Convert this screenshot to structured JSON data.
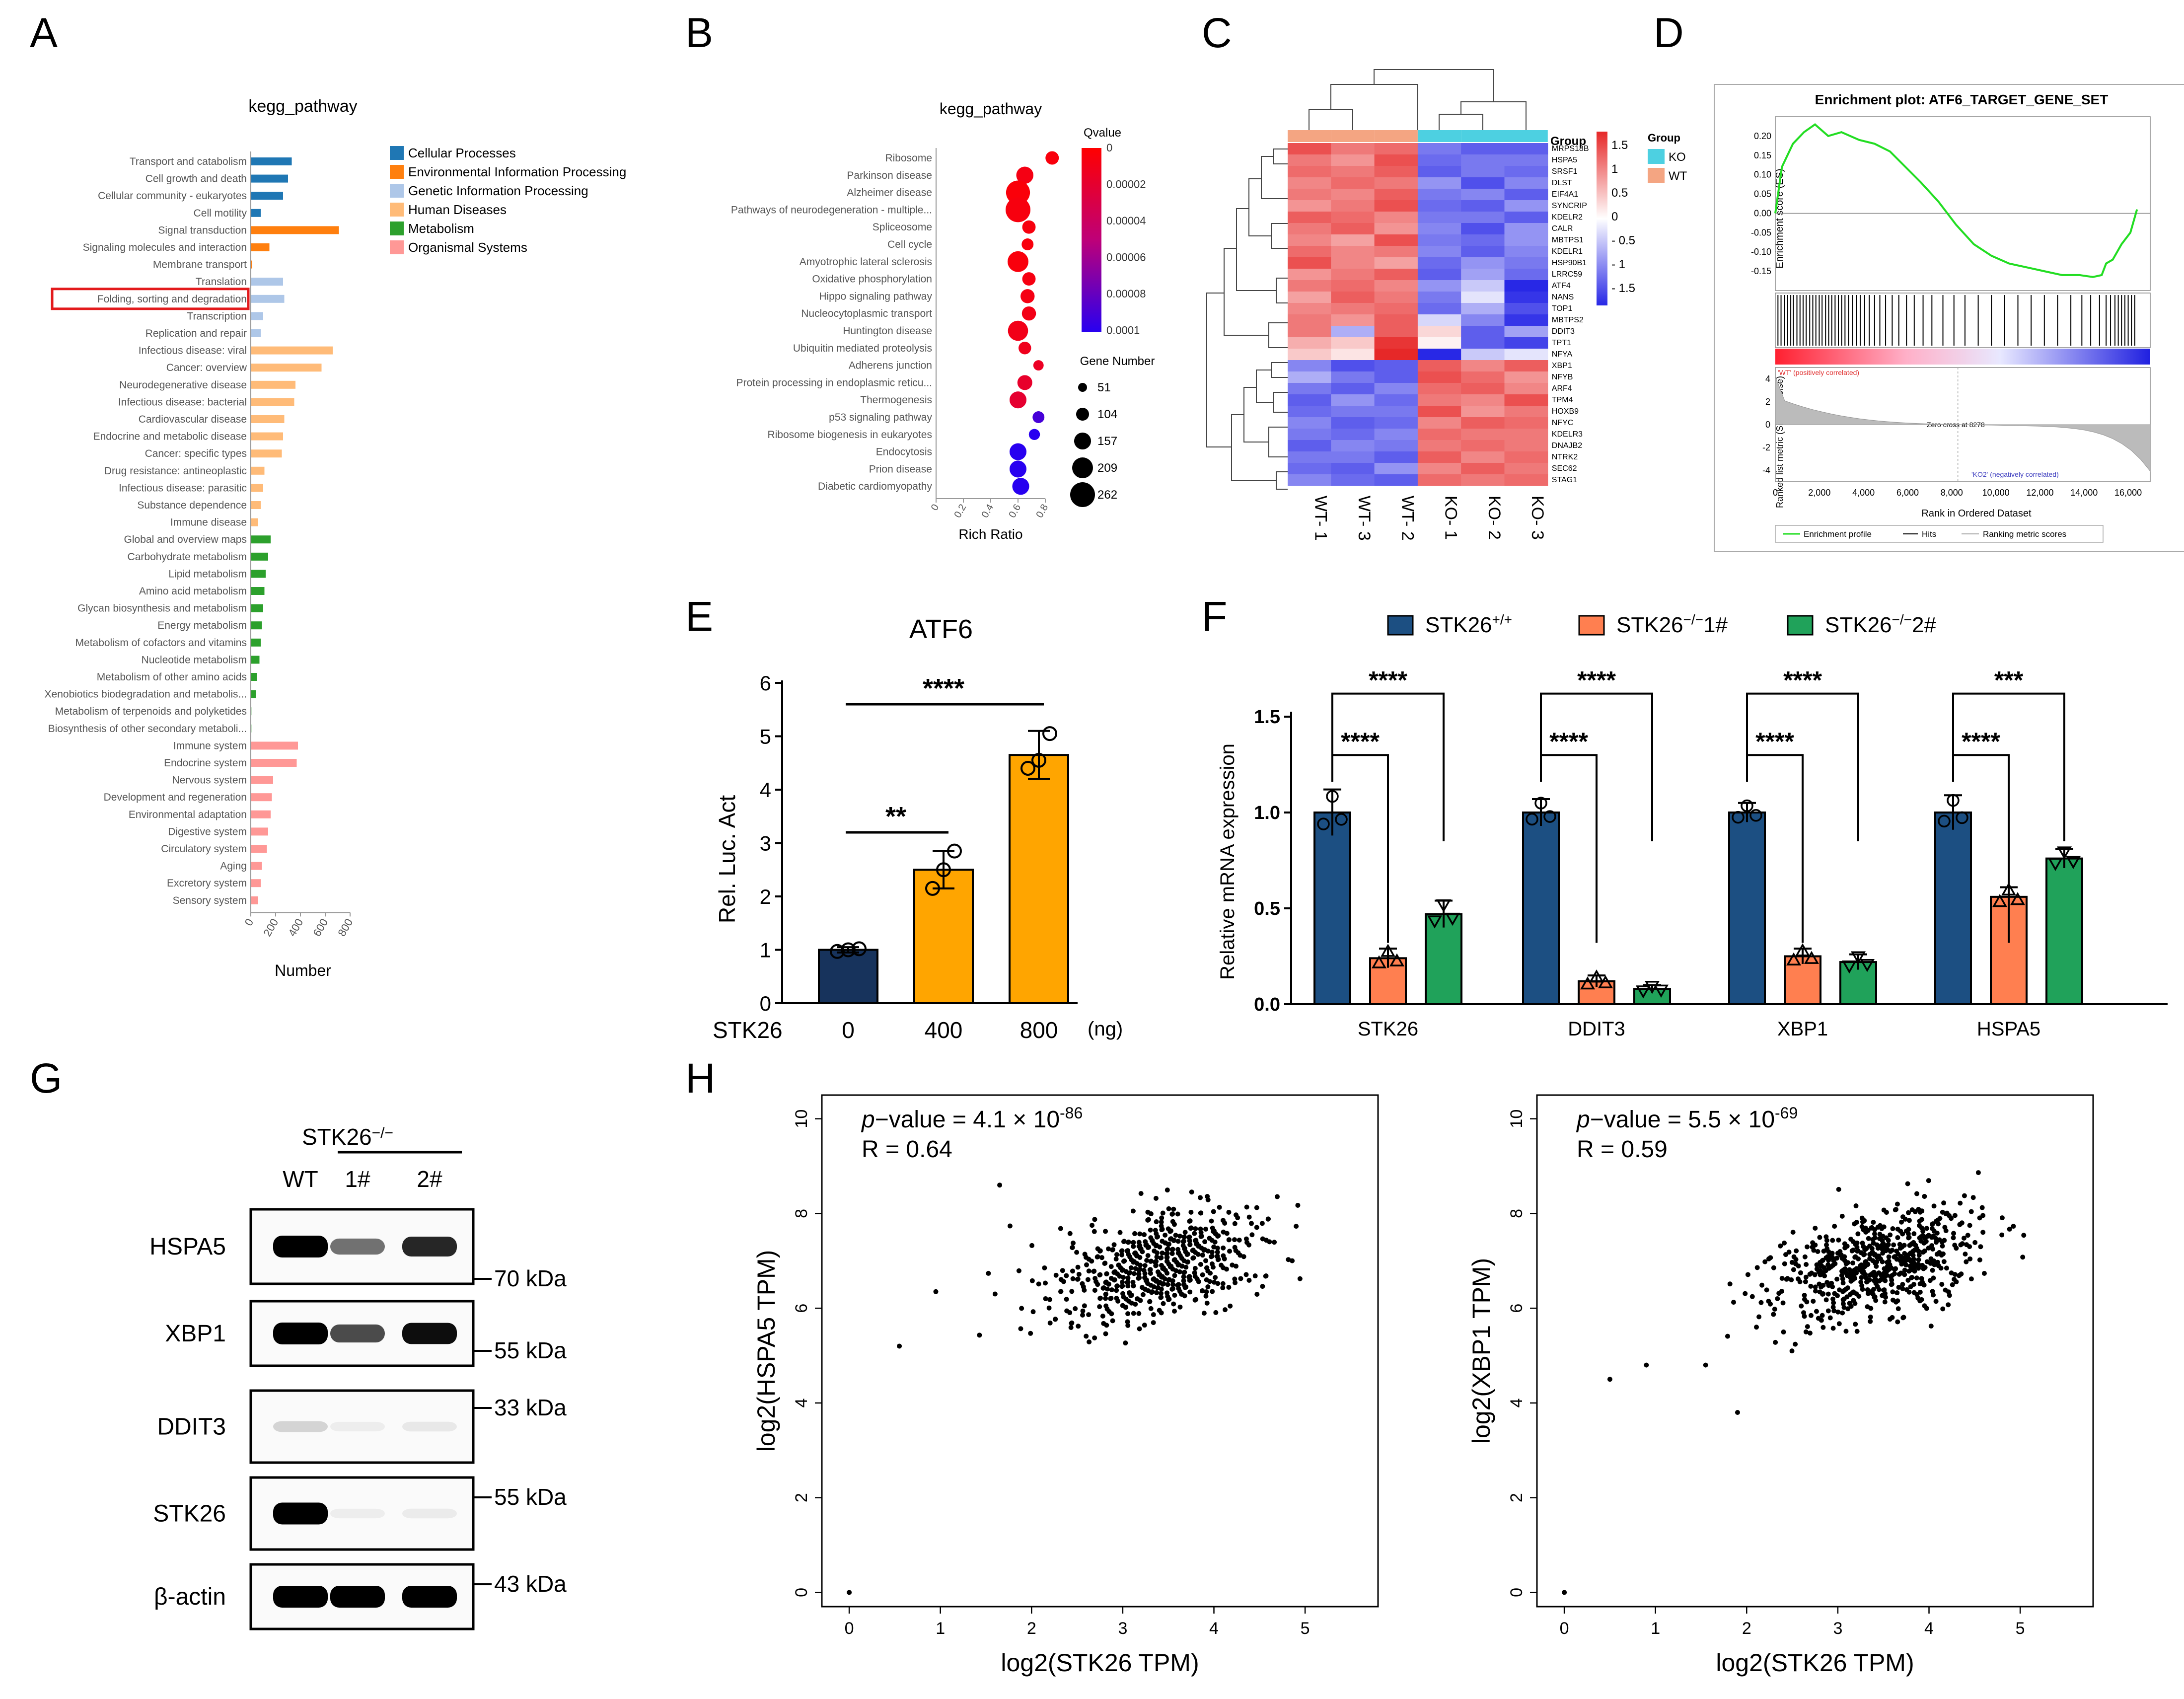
{
  "colors": {
    "cellular": "#1f77b4",
    "environmental": "#ff7f0e",
    "genetic": "#aec7e8",
    "human": "#ffbb78",
    "metabolism": "#2ca02c",
    "organismal": "#ff9896",
    "wt_group": "#f4a582",
    "ko_group": "#4dd0e1",
    "e_dark": "#17335c",
    "e_orange": "#ffa500",
    "f_blue": "#1c4f82",
    "f_orange": "#ff7f50",
    "f_green": "#20a25a",
    "highlight": "#e31a1c",
    "gsea_green": "#22dd22"
  },
  "panel_letters": {
    "a": "A",
    "b": "B",
    "c": "C",
    "d": "D",
    "e": "E",
    "f": "F",
    "g": "G",
    "h": "H"
  },
  "chart_data": [
    {
      "id": "A",
      "type": "bar",
      "title": "kegg_pathway",
      "xlabel": "Number",
      "xlim": [
        0,
        800
      ],
      "xticks": [
        "0",
        "200",
        "400",
        "600",
        "800"
      ],
      "highlighted": "Folding, sorting and degradation",
      "legend": [
        {
          "label": "Cellular Processes",
          "cat": "cellular"
        },
        {
          "label": "Environmental Information Processing",
          "cat": "environmental"
        },
        {
          "label": "Genetic Information Processing",
          "cat": "genetic"
        },
        {
          "label": "Human Diseases",
          "cat": "human"
        },
        {
          "label": "Metabolism",
          "cat": "metabolism"
        },
        {
          "label": "Organismal Systems",
          "cat": "organismal"
        }
      ],
      "categories": [
        "Transport and catabolism",
        "Cell growth and death",
        "Cellular community - eukaryotes",
        "Cell motility",
        "Signal transduction",
        "Signaling molecules and interaction",
        "Membrane transport",
        "Translation",
        "Folding, sorting and degradation",
        "Transcription",
        "Replication and repair",
        "Infectious disease: viral",
        "Cancer: overview",
        "Neurodegenerative disease",
        "Infectious disease: bacterial",
        "Cardiovascular disease",
        "Endocrine and metabolic disease",
        "Cancer: specific types",
        "Drug resistance: antineoplastic",
        "Infectious disease: parasitic",
        "Substance dependence",
        "Immune disease",
        "Global and overview maps",
        "Carbohydrate metabolism",
        "Lipid metabolism",
        "Amino acid metabolism",
        "Glycan biosynthesis and metabolism",
        "Energy metabolism",
        "Metabolism of cofactors and vitamins",
        "Nucleotide metabolism",
        "Metabolism of other amino acids",
        "Xenobiotics biodegradation and metabolis...",
        "Metabolism of terpenoids and polyketides",
        "Biosynthesis of other secondary metaboli...",
        "Immune system",
        "Endocrine system",
        "Nervous system",
        "Development and regeneration",
        "Environmental adaptation",
        "Digestive system",
        "Circulatory system",
        "Aging",
        "Excretory system",
        "Sensory system"
      ],
      "groups": [
        "cellular",
        "cellular",
        "cellular",
        "cellular",
        "environmental",
        "environmental",
        "environmental",
        "genetic",
        "genetic",
        "genetic",
        "genetic",
        "human",
        "human",
        "human",
        "human",
        "human",
        "human",
        "human",
        "human",
        "human",
        "human",
        "human",
        "metabolism",
        "metabolism",
        "metabolism",
        "metabolism",
        "metabolism",
        "metabolism",
        "metabolism",
        "metabolism",
        "metabolism",
        "metabolism",
        "metabolism",
        "metabolism",
        "organismal",
        "organismal",
        "organismal",
        "organismal",
        "organismal",
        "organismal",
        "organismal",
        "organismal",
        "organismal",
        "organismal"
      ],
      "values": [
        330,
        300,
        260,
        80,
        710,
        150,
        10,
        260,
        270,
        100,
        80,
        660,
        570,
        360,
        350,
        270,
        260,
        250,
        110,
        100,
        80,
        60,
        160,
        140,
        120,
        110,
        100,
        90,
        80,
        70,
        50,
        40,
        5,
        5,
        380,
        370,
        180,
        170,
        160,
        140,
        130,
        90,
        80,
        60
      ]
    },
    {
      "id": "B",
      "type": "scatter",
      "title": "kegg_pathway",
      "xlabel": "Rich Ratio",
      "xlim": [
        0,
        0.8
      ],
      "xticks": [
        "0",
        "0.2",
        "0.4",
        "0.6",
        "0.8"
      ],
      "qvalue_title": "Qvalue",
      "qvalue_ticks": [
        "0",
        "0.00002",
        "0.00004",
        "0.00006",
        "0.00008",
        "0.0001"
      ],
      "size_title": "Gene Number",
      "size_ticks": [
        51,
        104,
        157,
        209,
        262
      ],
      "categories": [
        "Ribosome",
        "Parkinson disease",
        "Alzheimer disease",
        "Pathways of neurodegeneration - multiple...",
        "Spliceosome",
        "Cell cycle",
        "Amyotrophic lateral sclerosis",
        "Oxidative phosphorylation",
        "Hippo signaling pathway",
        "Nucleocytoplasmic transport",
        "Huntington disease",
        "Ubiquitin mediated proteolysis",
        "Adherens junction",
        "Protein processing in endoplasmic reticu...",
        "Thermogenesis",
        "p53 signaling pathway",
        "Ribosome biogenesis in eukaryotes",
        "Endocytosis",
        "Prion disease",
        "Diabetic cardiomyopathy"
      ],
      "rich_ratio": [
        0.85,
        0.65,
        0.6,
        0.6,
        0.68,
        0.67,
        0.6,
        0.68,
        0.67,
        0.68,
        0.6,
        0.65,
        0.75,
        0.65,
        0.6,
        0.75,
        0.72,
        0.6,
        0.6,
        0.62
      ],
      "qvalue": [
        5e-06,
        8e-06,
        4e-06,
        6e-06,
        6e-06,
        5e-06,
        5e-06,
        7e-06,
        8e-06,
        9e-06,
        1e-05,
        1.2e-05,
        1.5e-05,
        1.8e-05,
        2e-05,
        9e-05,
        0.0001,
        0.0001,
        0.0001,
        0.0001
      ],
      "gene_number": [
        110,
        160,
        250,
        262,
        110,
        90,
        209,
        110,
        120,
        120,
        200,
        100,
        70,
        130,
        157,
        90,
        80,
        157,
        157,
        157
      ]
    },
    {
      "id": "C",
      "type": "heatmap",
      "group_label": "Group",
      "legend_title": "Group",
      "legend_entries": [
        "KO",
        "WT"
      ],
      "colorbar_ticks": [
        "1.5",
        "1",
        "0.5",
        "0",
        "- 0.5",
        "- 1",
        "- 1.5"
      ],
      "columns": [
        "WT- 1",
        "WT- 3",
        "WT- 2",
        "KO- 1",
        "KO- 2",
        "KO- 3"
      ],
      "genes": [
        "MRPS18B",
        "HSPA5",
        "SRSF1",
        "DLST",
        "EIF4A1",
        "SYNCRIP",
        "KDELR2",
        "CALR",
        "MBTPS1",
        "KDELR1",
        "HSP90B1",
        "LRRC59",
        "ATF4",
        "NANS",
        "TOP1",
        "MBTPS2",
        "DDIT3",
        "TPT1",
        "NFYA",
        "XBP1",
        "NFYB",
        "ARF4",
        "TPM4",
        "HOXB9",
        "NFYC",
        "KDELR3",
        "DNAJB2",
        "NTRK2",
        "SEC62",
        "STAG1"
      ],
      "values": [
        [
          1.3,
          1.0,
          1.1,
          -1.0,
          -1.2,
          -1.2
        ],
        [
          1.0,
          0.8,
          1.3,
          -1.1,
          -1.0,
          -1.0
        ],
        [
          1.1,
          1.0,
          1.2,
          -1.2,
          -1.0,
          -1.1
        ],
        [
          0.9,
          1.1,
          1.0,
          -0.8,
          -1.3,
          -0.9
        ],
        [
          1.0,
          0.9,
          1.2,
          -1.0,
          -0.9,
          -1.2
        ],
        [
          0.8,
          1.0,
          1.3,
          -1.1,
          -1.2,
          -0.8
        ],
        [
          1.2,
          1.1,
          0.9,
          -1.0,
          -1.0,
          -1.2
        ],
        [
          1.0,
          1.2,
          0.8,
          -0.9,
          -1.3,
          -0.8
        ],
        [
          0.9,
          0.7,
          1.3,
          -1.0,
          -1.1,
          -0.8
        ],
        [
          1.1,
          0.9,
          1.0,
          -0.9,
          -1.2,
          -0.9
        ],
        [
          1.3,
          0.9,
          0.7,
          -1.1,
          -0.8,
          -1.0
        ],
        [
          0.8,
          1.0,
          1.2,
          -1.2,
          -0.7,
          -1.1
        ],
        [
          1.0,
          1.1,
          0.9,
          -0.8,
          -0.4,
          -1.6
        ],
        [
          0.7,
          1.2,
          1.0,
          -1.0,
          -0.2,
          -1.5
        ],
        [
          0.9,
          1.0,
          1.1,
          -1.1,
          -0.6,
          -1.3
        ],
        [
          1.0,
          0.8,
          1.2,
          -0.3,
          -0.9,
          -1.5
        ],
        [
          1.0,
          -0.6,
          1.2,
          0.3,
          -1.2,
          -0.7
        ],
        [
          0.6,
          0.4,
          1.5,
          0.1,
          -1.2,
          -1.4
        ],
        [
          0.4,
          0.2,
          1.6,
          -1.6,
          -0.4,
          -0.2
        ],
        [
          -0.9,
          -1.3,
          -1.2,
          1.2,
          0.9,
          1.2
        ],
        [
          -0.6,
          -1.0,
          -1.2,
          1.3,
          1.1,
          0.8
        ],
        [
          -1.0,
          -1.2,
          -0.9,
          1.1,
          1.2,
          0.9
        ],
        [
          -1.2,
          -0.8,
          -1.1,
          1.0,
          0.9,
          1.3
        ],
        [
          -1.1,
          -1.0,
          -1.0,
          1.3,
          0.8,
          1.0
        ],
        [
          -0.9,
          -1.2,
          -1.1,
          0.9,
          1.2,
          1.1
        ],
        [
          -1.0,
          -1.1,
          -0.9,
          1.1,
          1.0,
          1.0
        ],
        [
          -1.2,
          -0.9,
          -1.0,
          1.0,
          1.1,
          1.0
        ],
        [
          -1.0,
          -1.0,
          -1.2,
          1.2,
          0.9,
          1.1
        ],
        [
          -1.1,
          -1.2,
          -0.8,
          0.9,
          1.2,
          1.0
        ],
        [
          -0.9,
          -1.1,
          -1.2,
          1.1,
          1.0,
          1.1
        ]
      ]
    },
    {
      "id": "D",
      "type": "line",
      "title": "Enrichment plot: ATF6_TARGET_GENE_SET",
      "ylabel": "Enrichment score (ES)",
      "ylabel2": "Ranked list metric (Signal2Noise)",
      "xlabel": "Rank in Ordered Dataset",
      "xlim": [
        0,
        17000
      ],
      "ylim": [
        -0.2,
        0.25
      ],
      "yticks": [
        "0.20",
        "0.15",
        "0.10",
        "0.05",
        "0.00",
        "-0.05",
        "-0.10",
        "-0.15"
      ],
      "xticks": [
        "0",
        "2,000",
        "4,000",
        "6,000",
        "8,000",
        "10,000",
        "12,000",
        "14,000",
        "16,000"
      ],
      "ranked_ticks": [
        "4",
        "2",
        "0",
        "-2",
        "-4"
      ],
      "es_x": [
        0,
        300,
        800,
        1300,
        1800,
        2400,
        3000,
        3800,
        4500,
        5200,
        5900,
        6600,
        7400,
        8200,
        9000,
        9800,
        10600,
        11400,
        12200,
        13000,
        13800,
        14400,
        14800,
        15000,
        15300,
        15700,
        16100,
        16400
      ],
      "es_y": [
        0.0,
        0.12,
        0.18,
        0.21,
        0.23,
        0.2,
        0.21,
        0.19,
        0.18,
        0.16,
        0.12,
        0.08,
        0.03,
        -0.03,
        -0.08,
        -0.11,
        -0.13,
        -0.14,
        -0.15,
        -0.16,
        -0.16,
        -0.165,
        -0.16,
        -0.13,
        -0.12,
        -0.08,
        -0.05,
        0.01
      ],
      "hits": [
        120,
        260,
        420,
        560,
        700,
        820,
        980,
        1120,
        1260,
        1400,
        1560,
        1700,
        1840,
        1990,
        2120,
        2280,
        2420,
        2560,
        2710,
        2860,
        3010,
        3160,
        3320,
        3500,
        3680,
        3850,
        4050,
        4260,
        4500,
        4740,
        5000,
        5300,
        5600,
        5950,
        6300,
        6700,
        7100,
        7600,
        8100,
        8600,
        9200,
        9800,
        10400,
        11000,
        11600,
        12200,
        12800,
        13400,
        13900,
        14300,
        14700,
        15000,
        15200,
        15400,
        15550,
        15700,
        15850,
        16000,
        16150,
        16300
      ],
      "wt_label": "'WT' (positively correlated)",
      "ko_label": "'KO2' (negatively correlated)",
      "zero_cross": "Zero cross at 8278",
      "legend": [
        "Enrichment profile",
        "Hits",
        "Ranking metric scores"
      ]
    },
    {
      "id": "E",
      "type": "bar",
      "title": "ATF6",
      "ylabel": "Rel. Luc. Act",
      "xlabel_prefix": "STK26",
      "unit": "(ng)",
      "categories": [
        "0",
        "400",
        "800"
      ],
      "values": [
        1.0,
        2.5,
        4.65
      ],
      "errors": [
        0.05,
        0.35,
        0.45
      ],
      "points": [
        [
          0.97,
          1.0,
          1.02
        ],
        [
          2.15,
          2.5,
          2.85
        ],
        [
          4.4,
          4.55,
          5.05
        ]
      ],
      "ylim": [
        0,
        6
      ],
      "yticks": [
        "0",
        "1",
        "2",
        "3",
        "4",
        "5",
        "6"
      ],
      "sig": [
        {
          "label": "**",
          "from": 0,
          "to": 1,
          "level": 3.2
        },
        {
          "label": "****",
          "from": 0,
          "to": 2,
          "level": 5.6
        }
      ]
    },
    {
      "id": "F",
      "type": "bar",
      "ylabel": "Relative mRNA expression",
      "ylim": [
        0,
        1.5
      ],
      "yticks": [
        "0.0",
        "0.5",
        "1.0",
        "1.5"
      ],
      "categories": [
        "STK26",
        "DDIT3",
        "XBP1",
        "HSPA5"
      ],
      "series": [
        {
          "name": "STK26",
          "sup": "+/+",
          "values": [
            1.0,
            1.0,
            1.0,
            1.0
          ],
          "errors": [
            0.12,
            0.07,
            0.05,
            0.09
          ]
        },
        {
          "name": "STK26",
          "sup": "−/−",
          "suffix": "1#",
          "values": [
            0.24,
            0.12,
            0.25,
            0.56
          ],
          "errors": [
            0.05,
            0.03,
            0.04,
            0.05
          ]
        },
        {
          "name": "STK26",
          "sup": "−/−",
          "suffix": "2#",
          "values": [
            0.47,
            0.08,
            0.22,
            0.76
          ],
          "errors": [
            0.07,
            0.02,
            0.04,
            0.05
          ]
        }
      ],
      "sig": [
        [
          "****",
          "****"
        ],
        [
          "****",
          "****"
        ],
        [
          "****",
          "****"
        ],
        [
          "****",
          "***"
        ]
      ]
    },
    {
      "id": "H1",
      "type": "scatter",
      "xlabel": "log2(STK26 TPM)",
      "ylabel": "log2(HSPA5 TPM)",
      "p_label": "p",
      "p_text": "−value = 4.1 × 10",
      "p_exp": "-86",
      "r_text": "R = 0.64",
      "xlim": [
        -0.3,
        5.8
      ],
      "ylim": [
        -0.3,
        10.5
      ],
      "xticks": [
        0,
        1,
        2,
        3,
        4,
        5
      ],
      "yticks": [
        0,
        2,
        4,
        6,
        8,
        10
      ],
      "center": [
        3.4,
        6.9
      ],
      "slope": 0.78,
      "spread": [
        0.8,
        0.75
      ],
      "n_points": 620,
      "outliers": [
        [
          0,
          0
        ],
        [
          0.55,
          5.2
        ],
        [
          0.95,
          6.35
        ],
        [
          1.6,
          6.3
        ],
        [
          1.65,
          8.6
        ]
      ]
    },
    {
      "id": "H2",
      "type": "scatter",
      "xlabel": "log2(STK26 TPM)",
      "ylabel": "log2(XBP1 TPM)",
      "p_label": "p",
      "p_text": "−value = 5.5 × 10",
      "p_exp": "-69",
      "r_text": "R = 0.59",
      "xlim": [
        -0.3,
        5.8
      ],
      "ylim": [
        -0.3,
        10.5
      ],
      "xticks": [
        0,
        1,
        2,
        3,
        4,
        5
      ],
      "yticks": [
        0,
        2,
        4,
        6,
        8,
        10
      ],
      "center": [
        3.4,
        6.9
      ],
      "slope": 0.75,
      "spread": [
        0.8,
        0.8
      ],
      "n_points": 620,
      "outliers": [
        [
          0,
          0
        ],
        [
          0.5,
          4.5
        ],
        [
          0.9,
          4.8
        ],
        [
          1.55,
          4.8
        ],
        [
          1.9,
          3.8
        ]
      ]
    }
  ],
  "western": {
    "group_label": "STK26",
    "group_sup": "−/−",
    "lanes": [
      "WT",
      "1#",
      "2#"
    ],
    "rows": [
      {
        "protein": "HSPA5",
        "marker": "70 kDa",
        "intensity": [
          1.0,
          0.55,
          0.85
        ]
      },
      {
        "protein": "XBP1",
        "marker": "55 kDa",
        "intensity": [
          1.0,
          0.7,
          0.95
        ]
      },
      {
        "protein": "DDIT3",
        "marker": "33 kDa",
        "intensity": [
          0.15,
          0.05,
          0.07
        ]
      },
      {
        "protein": "STK26",
        "marker": "55 kDa",
        "intensity": [
          1.0,
          0.05,
          0.06
        ]
      },
      {
        "protein": "β-actin",
        "marker": "43 kDa",
        "intensity": [
          1.0,
          1.0,
          1.0
        ]
      }
    ]
  }
}
